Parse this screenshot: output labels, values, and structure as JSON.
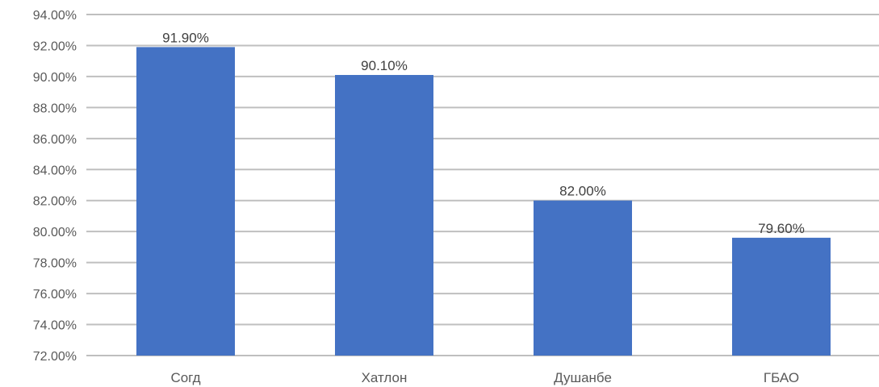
{
  "chart_data": {
    "type": "bar",
    "categories": [
      "Согд",
      "Хатлон",
      "Душанбе",
      "ГБАО"
    ],
    "values": [
      91.9,
      90.1,
      82.0,
      79.6
    ],
    "data_labels": [
      "91.90%",
      "90.10%",
      "82.00%",
      "79.60%"
    ],
    "ylim": [
      72,
      94
    ],
    "y_ticks": [
      72,
      74,
      76,
      78,
      80,
      82,
      84,
      86,
      88,
      90,
      92,
      94
    ],
    "y_tick_labels": [
      "72.00%",
      "74.00%",
      "76.00%",
      "78.00%",
      "80.00%",
      "82.00%",
      "84.00%",
      "86.00%",
      "88.00%",
      "90.00%",
      "92.00%",
      "94.00%"
    ],
    "grid": true,
    "legend": "none",
    "bar_color": "#4472c4",
    "grid_color": "#bfbfbf"
  }
}
